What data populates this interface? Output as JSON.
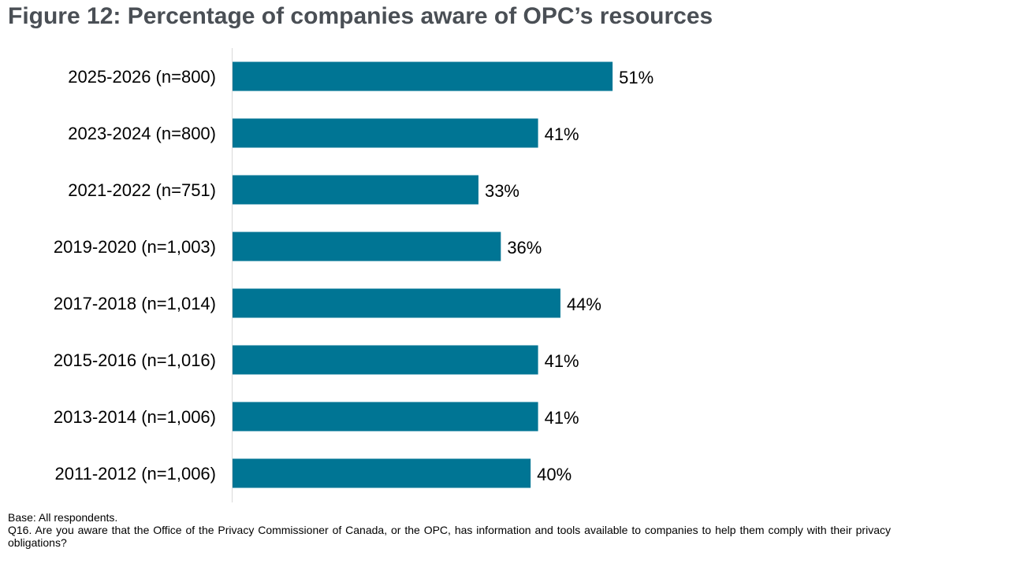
{
  "title": "Figure 12: Percentage of companies aware of OPC’s resources",
  "footnote": {
    "base": "Base: All respondents.",
    "question": "Q16. Are you aware that the Office of the Privacy Commissioner of Canada, or the OPC, has information and tools available to companies to help them comply with their privacy obligations?"
  },
  "colors": {
    "bar": "#007594",
    "axis": "#d9d9d9",
    "title": "#4a4f55"
  },
  "chart_data": {
    "type": "bar",
    "orientation": "horizontal",
    "categories": [
      "2025-2026 (n=800)",
      "2023-2024 (n=800)",
      "2021-2022 (n=751)",
      "2019-2020 (n=1,003)",
      "2017-2018 (n=1,014)",
      "2015-2016 (n=1,016)",
      "2013-2014 (n=1,006)",
      "2011-2012 (n=1,006)"
    ],
    "values": [
      51,
      41,
      33,
      36,
      44,
      41,
      41,
      40
    ],
    "data_labels": [
      "51%",
      "41%",
      "33%",
      "36%",
      "44%",
      "41%",
      "41%",
      "40%"
    ],
    "title": "Figure 12: Percentage of companies aware of OPC’s resources",
    "xlabel": "",
    "ylabel": "",
    "xlim": [
      0,
      75
    ],
    "grid": false,
    "legend": "none"
  }
}
